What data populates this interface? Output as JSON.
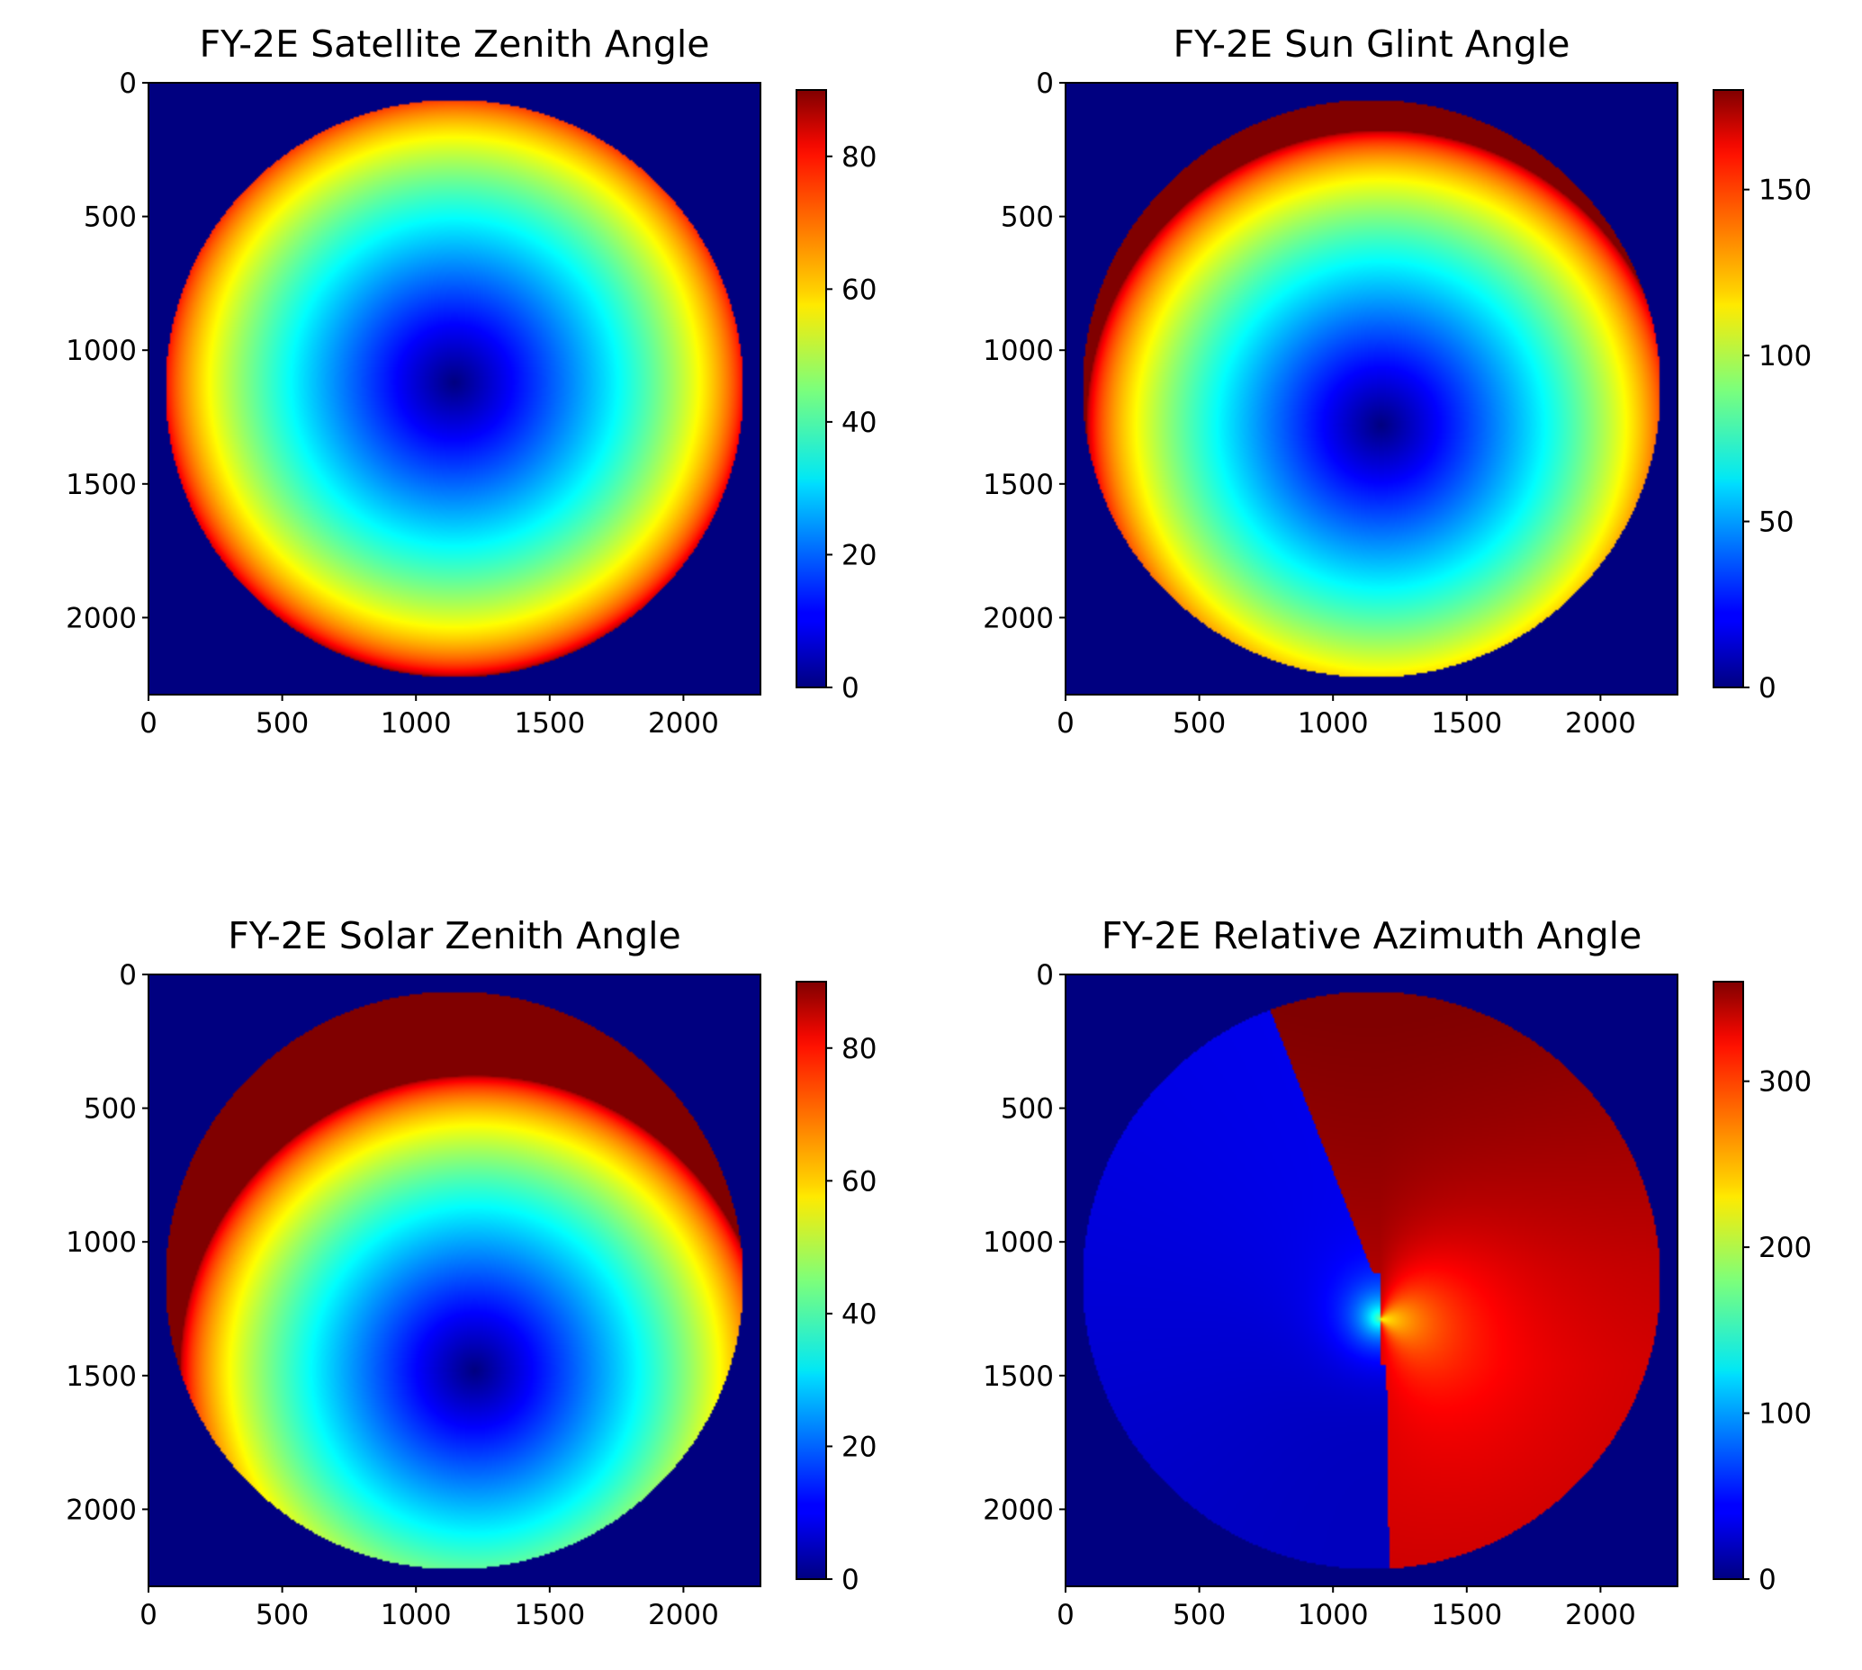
{
  "figure": {
    "background": "#ffffff",
    "colormap": "jet"
  },
  "chart_data": [
    {
      "type": "heatmap",
      "title": "FY-2E Satellite Zenith Angle",
      "xlabel": "",
      "ylabel": "",
      "xlim": [
        0,
        2288
      ],
      "ylim": [
        2288,
        0
      ],
      "xticks": [
        0,
        500,
        1000,
        1500,
        2000
      ],
      "yticks": [
        0,
        500,
        1000,
        1500,
        2000
      ],
      "colorbar": {
        "range": [
          0,
          90
        ],
        "ticks": [
          0,
          20,
          40,
          60,
          80
        ]
      },
      "field": {
        "kind": "radial",
        "disk_center": [
          1144,
          1144
        ],
        "disk_radius": 1080,
        "value_center": [
          1144,
          1120
        ],
        "value_scale": 2.25,
        "value_max": 90,
        "background_value": 0
      }
    },
    {
      "type": "heatmap",
      "title": "FY-2E Sun Glint Angle",
      "xlabel": "",
      "ylabel": "",
      "xlim": [
        0,
        2288
      ],
      "ylim": [
        2288,
        0
      ],
      "xticks": [
        0,
        500,
        1000,
        1500,
        2000
      ],
      "yticks": [
        0,
        500,
        1000,
        1500,
        2000
      ],
      "colorbar": {
        "range": [
          0,
          180
        ],
        "ticks": [
          0,
          50,
          100,
          150
        ]
      },
      "field": {
        "kind": "radial",
        "disk_center": [
          1144,
          1144
        ],
        "disk_radius": 1080,
        "value_center": [
          1180,
          1280
        ],
        "value_scale": 2.2,
        "value_max": 180,
        "background_value": 0
      }
    },
    {
      "type": "heatmap",
      "title": "FY-2E Solar Zenith Angle",
      "xlabel": "",
      "ylabel": "",
      "xlim": [
        0,
        2288
      ],
      "ylim": [
        2288,
        0
      ],
      "xticks": [
        0,
        500,
        1000,
        1500,
        2000
      ],
      "yticks": [
        0,
        500,
        1000,
        1500,
        2000
      ],
      "colorbar": {
        "range": [
          0,
          90
        ],
        "ticks": [
          0,
          20,
          40,
          60,
          80
        ]
      },
      "field": {
        "kind": "radial",
        "disk_center": [
          1144,
          1144
        ],
        "disk_radius": 1080,
        "value_center": [
          1220,
          1480
        ],
        "value_scale": 2.15,
        "value_max": 90,
        "background_value": 0
      }
    },
    {
      "type": "heatmap",
      "title": "FY-2E Relative Azimuth Angle",
      "xlabel": "",
      "ylabel": "",
      "xlim": [
        0,
        2288
      ],
      "ylim": [
        2288,
        0
      ],
      "xticks": [
        0,
        500,
        1000,
        1500,
        2000
      ],
      "yticks": [
        0,
        500,
        1000,
        1500,
        2000
      ],
      "colorbar": {
        "range": [
          0,
          360
        ],
        "ticks": [
          0,
          100,
          200,
          300
        ]
      },
      "field": {
        "kind": "azimuth",
        "disk_center": [
          1144,
          1144
        ],
        "disk_radius": 1080,
        "pole_top": [
          1150,
          1120
        ],
        "pole_bottom": [
          1200,
          1460
        ],
        "cut_top": [
          760,
          120
        ],
        "cut_bottom": [
          1210,
          2220
        ],
        "background_value": 0
      }
    }
  ]
}
